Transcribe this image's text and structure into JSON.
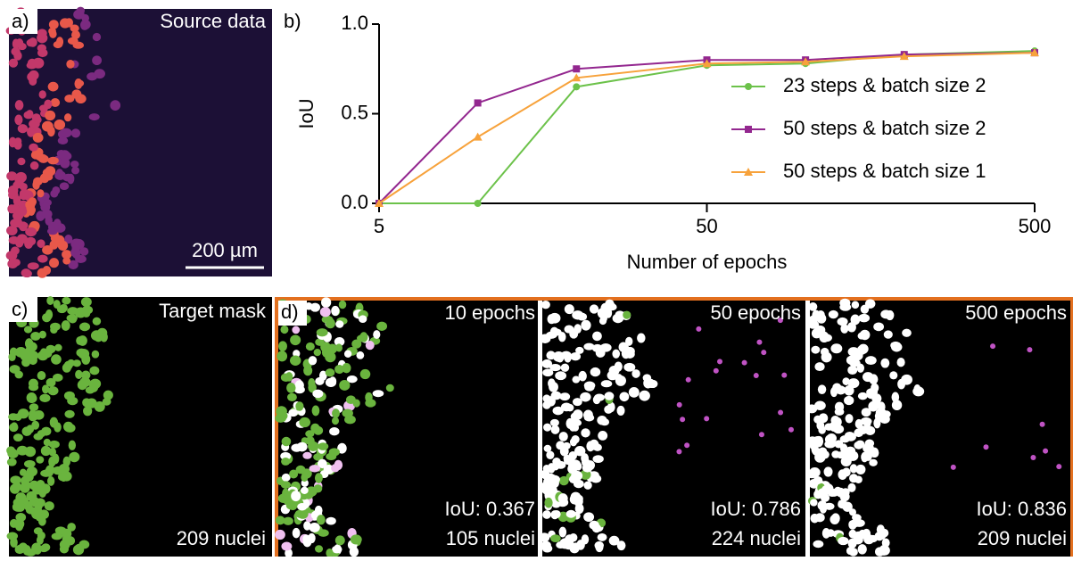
{
  "panels": {
    "a": {
      "label": "a)",
      "title": "Source data",
      "scale_bar": "200 µm"
    },
    "b": {
      "label": "b)"
    },
    "c": {
      "label": "c)",
      "title": "Target mask",
      "count": "209 nuclei"
    },
    "d": {
      "label": "d)",
      "images": [
        {
          "title": "10 epochs",
          "iou": "IoU: 0.367",
          "count": "105 nuclei"
        },
        {
          "title": "50 epochs",
          "iou": "IoU: 0.786",
          "count": "224 nuclei"
        },
        {
          "title": "500 epochs",
          "iou": "IoU: 0.836",
          "count": "209 nuclei"
        }
      ]
    }
  },
  "chart_data": {
    "type": "line",
    "x_label": "Number of epochs",
    "y_label": "IoU",
    "x": [
      5,
      10,
      20,
      50,
      100,
      200,
      500
    ],
    "log_x": true,
    "xlim": [
      5,
      500
    ],
    "xticks": [
      5,
      50,
      500
    ],
    "ylim": [
      0,
      1
    ],
    "yticks": [
      {
        "value": 0,
        "label": "0.0"
      },
      {
        "value": 0.5,
        "label": "0.5"
      },
      {
        "value": 1,
        "label": "1.0"
      }
    ],
    "legend": "right",
    "series": [
      {
        "name": "23 steps & batch size 2",
        "color": "#6cc24a",
        "marker": "circle",
        "values": [
          0,
          0,
          0.65,
          0.77,
          0.78,
          0.83,
          0.85
        ]
      },
      {
        "name": "50 steps & batch size 2",
        "color": "#93278f",
        "marker": "square",
        "values": [
          0,
          0.56,
          0.75,
          0.8,
          0.8,
          0.83,
          0.84
        ]
      },
      {
        "name": "50 steps & batch size 1",
        "color": "#f7a23b",
        "marker": "triangle",
        "values": [
          0,
          0.37,
          0.7,
          0.78,
          0.79,
          0.82,
          0.84
        ]
      }
    ]
  }
}
